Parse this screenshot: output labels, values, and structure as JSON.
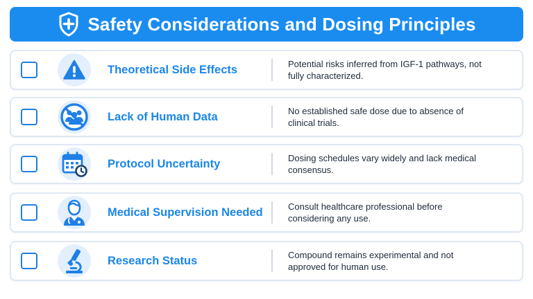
{
  "header": {
    "title": "Safety Considerations and Dosing Principles",
    "icon": "shield-plus-icon"
  },
  "colors": {
    "header_bg": "#1a8cf0",
    "accent": "#1a86e8",
    "icon_bg": "#e3effc",
    "text": "#1e2a3a"
  },
  "rows": [
    {
      "icon": "warning-triangle-icon",
      "title": "Theoretical Side Effects",
      "description": "Potential risks inferred from IGF-1 pathways, not fully characterized.",
      "checked": false
    },
    {
      "icon": "no-people-icon",
      "title": "Lack of Human Data",
      "description": "No established safe dose due to absence of clinical trials.",
      "checked": false
    },
    {
      "icon": "calendar-clock-icon",
      "title": "Protocol Uncertainty",
      "description": "Dosing schedules vary widely and lack medical consensus.",
      "checked": false
    },
    {
      "icon": "doctor-icon",
      "title": "Medical Supervision Needed",
      "description": "Consult healthcare professional before considering any use.",
      "checked": false
    },
    {
      "icon": "microscope-icon",
      "title": "Research Status",
      "description": "Compound remains experimental and not approved for human use.",
      "checked": false
    }
  ]
}
